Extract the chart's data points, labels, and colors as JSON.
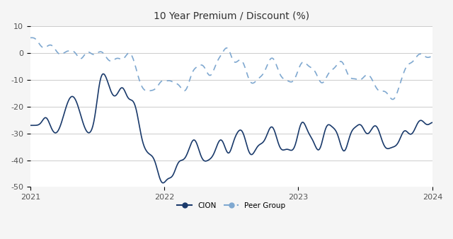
{
  "title": "10 Year Premium / Discount (%)",
  "title_fontsize": 10,
  "background_color": "#f5f5f5",
  "plot_bg_color": "#ffffff",
  "cion_color": "#1a3a6b",
  "peer_color": "#7fa8d0",
  "ylim": [
    -50,
    10
  ],
  "yticks": [
    10,
    0,
    -10,
    -20,
    -30,
    -40,
    -50
  ],
  "xlabel_years": [
    "2021",
    "2022",
    "2023",
    "2024"
  ],
  "legend_labels": [
    "CION",
    "Peer Group"
  ]
}
